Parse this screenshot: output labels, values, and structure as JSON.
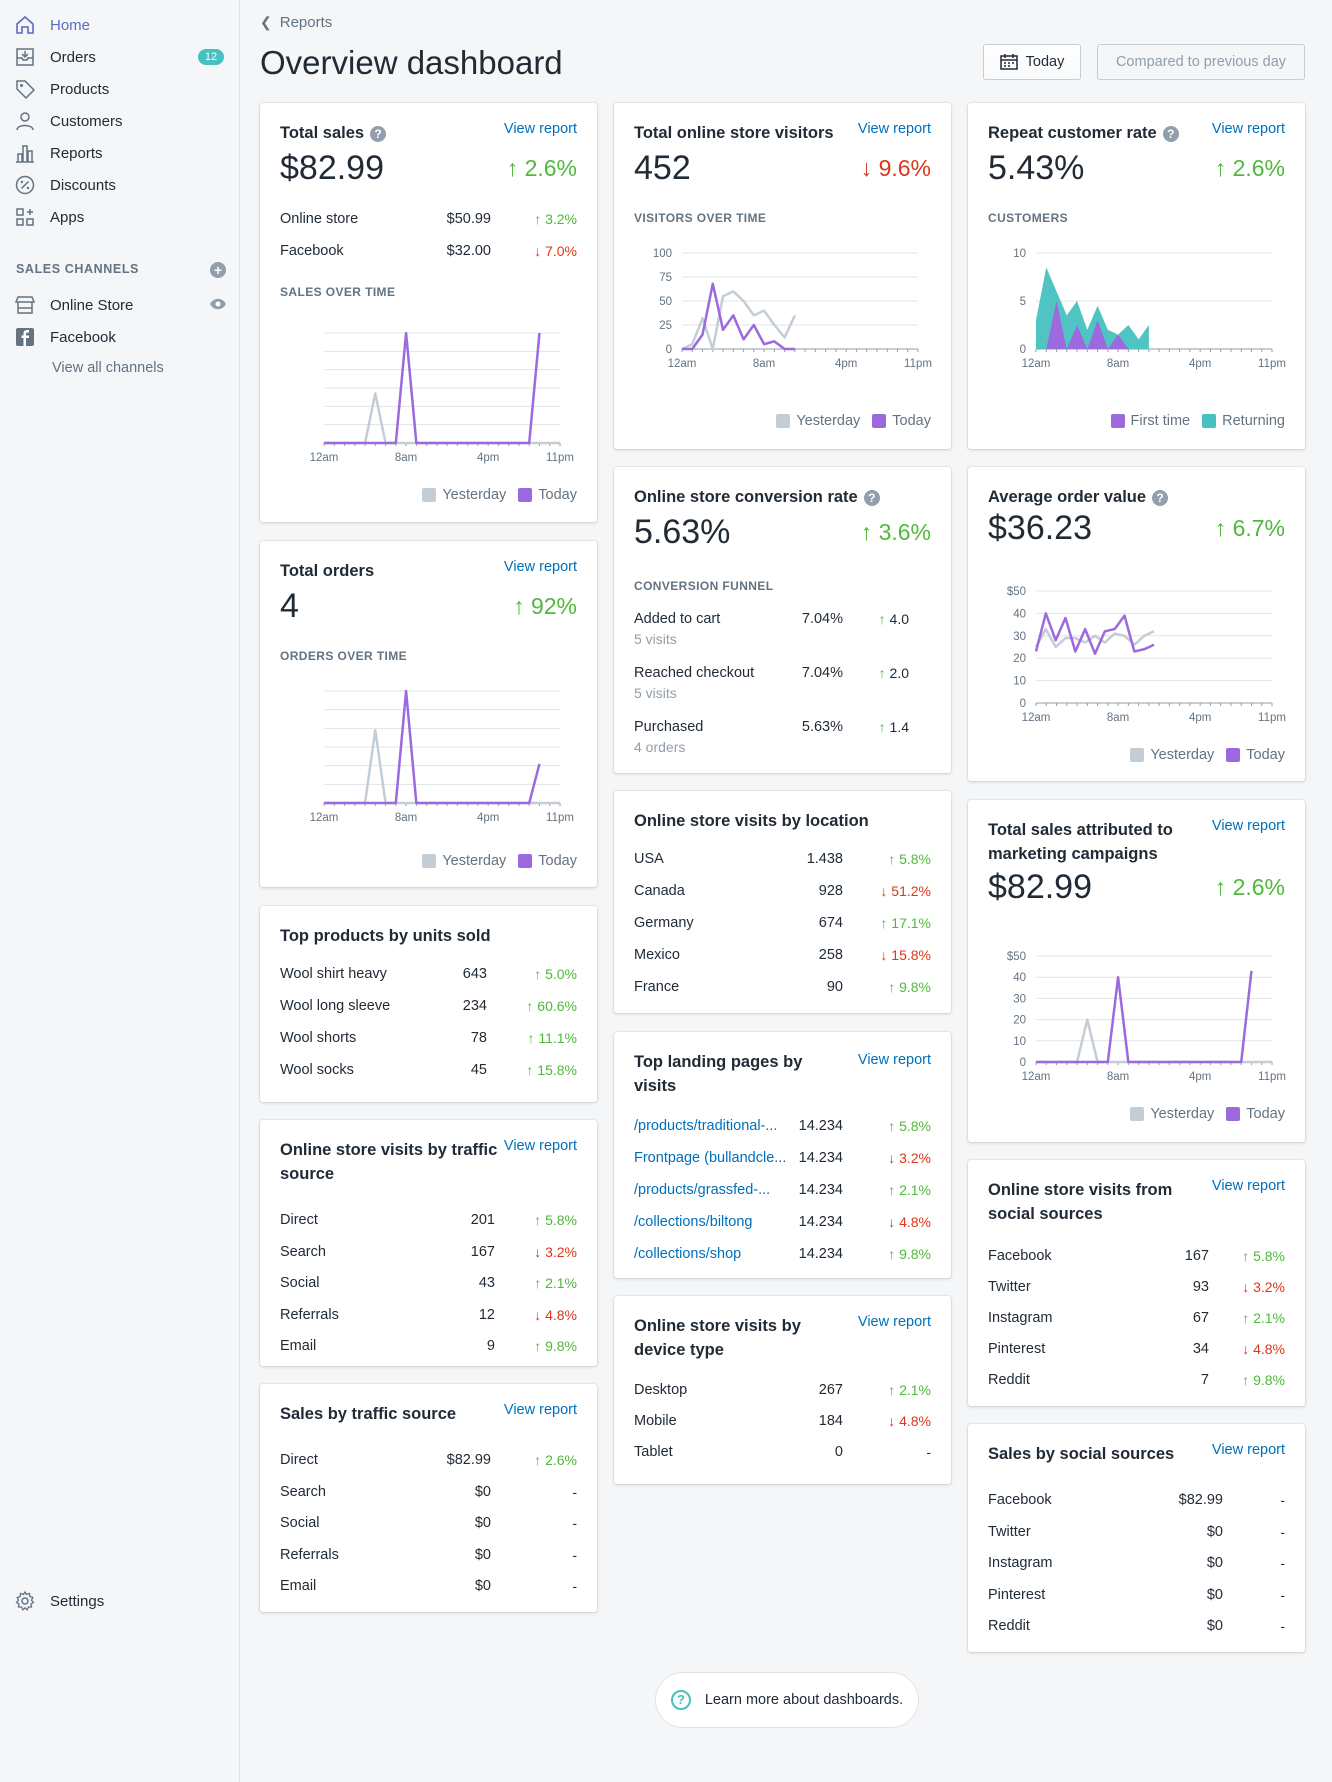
{
  "sidebar": {
    "items": [
      {
        "label": "Home",
        "icon": "home-icon"
      },
      {
        "label": "Orders",
        "icon": "orders-icon",
        "badge": "12"
      },
      {
        "label": "Products",
        "icon": "tag-icon"
      },
      {
        "label": "Customers",
        "icon": "customer-icon"
      },
      {
        "label": "Reports",
        "icon": "reports-icon"
      },
      {
        "label": "Discounts",
        "icon": "discount-icon"
      },
      {
        "label": "Apps",
        "icon": "apps-icon"
      }
    ],
    "channels_heading": "SALES CHANNELS",
    "channels": [
      {
        "label": "Online Store",
        "icon": "store-icon"
      },
      {
        "label": "Facebook",
        "icon": "facebook-icon"
      }
    ],
    "view_all": "View all channels",
    "settings": "Settings"
  },
  "header": {
    "breadcrumb": "Reports",
    "title": "Overview dashboard",
    "date_button": "Today",
    "compare_button": "Compared to previous day"
  },
  "common": {
    "view_report": "View report",
    "yesterday": "Yesterday",
    "today": "Today"
  },
  "total_sales": {
    "title": "Total sales",
    "value": "$82.99",
    "change": "2.6%",
    "rows": [
      {
        "name": "Online store",
        "value": "$50.99",
        "change": "3.2%",
        "dir": "up"
      },
      {
        "name": "Facebook",
        "value": "$32.00",
        "change": "7.0%",
        "dir": "down"
      }
    ],
    "chart_label": "SALES OVER TIME"
  },
  "total_orders": {
    "title": "Total orders",
    "value": "4",
    "change": "92%",
    "chart_label": "ORDERS OVER TIME"
  },
  "top_products": {
    "title": "Top products by units sold",
    "rows": [
      {
        "name": "Wool shirt heavy",
        "value": "643",
        "change": "5.0%",
        "dir": "up"
      },
      {
        "name": "Wool long sleeve",
        "value": "234",
        "change": "60.6%",
        "dir": "up"
      },
      {
        "name": "Wool shorts",
        "value": "78",
        "change": "11.1%",
        "dir": "up"
      },
      {
        "name": "Wool socks",
        "value": "45",
        "change": "15.8%",
        "dir": "up"
      }
    ]
  },
  "traffic_source": {
    "title": "Online store visits by traffic source",
    "rows": [
      {
        "name": "Direct",
        "value": "201",
        "change": "5.8%",
        "dir": "up"
      },
      {
        "name": "Search",
        "value": "167",
        "change": "3.2%",
        "dir": "down"
      },
      {
        "name": "Social",
        "value": "43",
        "change": "2.1%",
        "dir": "up"
      },
      {
        "name": "Referrals",
        "value": "12",
        "change": "4.8%",
        "dir": "down"
      },
      {
        "name": "Email",
        "value": "9",
        "change": "9.8%",
        "dir": "up"
      }
    ]
  },
  "sales_traffic": {
    "title": "Sales by traffic source",
    "rows": [
      {
        "name": "Direct",
        "value": "$82.99",
        "change": "2.6%",
        "dir": "up"
      },
      {
        "name": "Search",
        "value": "$0",
        "change": "-",
        "dir": "none"
      },
      {
        "name": "Social",
        "value": "$0",
        "change": "-",
        "dir": "none"
      },
      {
        "name": "Referrals",
        "value": "$0",
        "change": "-",
        "dir": "none"
      },
      {
        "name": "Email",
        "value": "$0",
        "change": "-",
        "dir": "none"
      }
    ]
  },
  "visitors": {
    "title": "Total online store visitors",
    "value": "452",
    "change": "9.6%",
    "chart_label": "VISITORS OVER TIME"
  },
  "conversion": {
    "title": "Online store conversion rate",
    "value": "5.63%",
    "change": "3.6%",
    "funnel_label": "CONVERSION FUNNEL",
    "rows": [
      {
        "name": "Added to cart",
        "sub": "5 visits",
        "value": "7.04%",
        "change": "4.0"
      },
      {
        "name": "Reached checkout",
        "sub": "5 visits",
        "value": "7.04%",
        "change": "2.0"
      },
      {
        "name": "Purchased",
        "sub": "4 orders",
        "value": "5.63%",
        "change": "1.4"
      }
    ]
  },
  "location": {
    "title": "Online store visits by location",
    "rows": [
      {
        "name": "USA",
        "value": "1.438",
        "change": "5.8%",
        "dir": "up"
      },
      {
        "name": "Canada",
        "value": "928",
        "change": "51.2%",
        "dir": "down"
      },
      {
        "name": "Germany",
        "value": "674",
        "change": "17.1%",
        "dir": "up"
      },
      {
        "name": "Mexico",
        "value": "258",
        "change": "15.8%",
        "dir": "down"
      },
      {
        "name": "France",
        "value": "90",
        "change": "9.8%",
        "dir": "up"
      }
    ]
  },
  "landing": {
    "title": "Top landing pages by visits",
    "rows": [
      {
        "name": "/products/traditional-...",
        "value": "14.234",
        "change": "5.8%",
        "dir": "up"
      },
      {
        "name": "Frontpage (bullandcle...",
        "value": "14.234",
        "change": "3.2%",
        "dir": "down"
      },
      {
        "name": "/products/grassfed-...",
        "value": "14.234",
        "change": "2.1%",
        "dir": "up"
      },
      {
        "name": "/collections/biltong",
        "value": "14.234",
        "change": "4.8%",
        "dir": "down"
      },
      {
        "name": "/collections/shop",
        "value": "14.234",
        "change": "9.8%",
        "dir": "up"
      }
    ]
  },
  "device": {
    "title": "Online store visits by device type",
    "rows": [
      {
        "name": "Desktop",
        "value": "267",
        "change": "2.1%",
        "dir": "up"
      },
      {
        "name": "Mobile",
        "value": "184",
        "change": "4.8%",
        "dir": "down"
      },
      {
        "name": "Tablet",
        "value": "0",
        "change": "-",
        "dir": "none"
      }
    ]
  },
  "repeat": {
    "title": "Repeat customer rate",
    "value": "5.43%",
    "change": "2.6%",
    "chart_label": "CUSTOMERS",
    "legend_first": "First time",
    "legend_returning": "Returning"
  },
  "aov": {
    "title": "Average order value",
    "value": "$36.23",
    "change": "6.7%"
  },
  "marketing": {
    "title": "Total sales attributed to marketing campaigns",
    "value": "$82.99",
    "change": "2.6%"
  },
  "social_visits": {
    "title": "Online store visits from social sources",
    "rows": [
      {
        "name": "Facebook",
        "value": "167",
        "change": "5.8%",
        "dir": "up"
      },
      {
        "name": "Twitter",
        "value": "93",
        "change": "3.2%",
        "dir": "down"
      },
      {
        "name": "Instagram",
        "value": "67",
        "change": "2.1%",
        "dir": "up"
      },
      {
        "name": "Pinterest",
        "value": "34",
        "change": "4.8%",
        "dir": "down"
      },
      {
        "name": "Reddit",
        "value": "7",
        "change": "9.8%",
        "dir": "up"
      }
    ]
  },
  "social_sales": {
    "title": "Sales by social sources",
    "rows": [
      {
        "name": "Facebook",
        "value": "$82.99",
        "change": "-",
        "dir": "none"
      },
      {
        "name": "Twitter",
        "value": "$0",
        "change": "-",
        "dir": "none"
      },
      {
        "name": "Instagram",
        "value": "$0",
        "change": "-",
        "dir": "none"
      },
      {
        "name": "Pinterest",
        "value": "$0",
        "change": "-",
        "dir": "none"
      },
      {
        "name": "Reddit",
        "value": "$0",
        "change": "-",
        "dir": "none"
      }
    ]
  },
  "footer": {
    "learn": "Learn more about dashboards."
  },
  "colors": {
    "today": "#9c6ade",
    "yesterday": "#c4cdd5",
    "returning": "#47c1bf",
    "up": "#50b83c",
    "down": "#de3618",
    "link": "#006fbb"
  },
  "chart_data": [
    {
      "id": "sales",
      "type": "line",
      "x_ticks": [
        "12am",
        "8am",
        "4pm",
        "11pm"
      ],
      "ylim": [
        0,
        100
      ],
      "series": [
        {
          "name": "Yesterday",
          "values": [
            0,
            0,
            0,
            0,
            0,
            45,
            0,
            0,
            0,
            0,
            0,
            0,
            0,
            0,
            0,
            0,
            0,
            0,
            0,
            0,
            0,
            0,
            0,
            0
          ]
        },
        {
          "name": "Today",
          "values": [
            0,
            0,
            0,
            0,
            0,
            0,
            0,
            0,
            100,
            0,
            0,
            0,
            0,
            0,
            0,
            0,
            0,
            0,
            0,
            0,
            0,
            100
          ]
        }
      ]
    },
    {
      "id": "orders",
      "type": "line",
      "x_ticks": [
        "12am",
        "8am",
        "4pm",
        "11pm"
      ],
      "ylim": [
        0,
        100
      ],
      "series": [
        {
          "name": "Yesterday",
          "values": [
            0,
            0,
            0,
            0,
            0,
            65,
            0,
            0,
            0,
            0,
            0,
            0,
            0,
            0,
            0,
            0,
            0,
            0,
            0,
            0,
            0,
            0,
            0,
            0
          ]
        },
        {
          "name": "Today",
          "values": [
            0,
            0,
            0,
            0,
            0,
            0,
            0,
            0,
            100,
            0,
            0,
            0,
            0,
            0,
            0,
            0,
            0,
            0,
            0,
            0,
            0,
            35
          ]
        }
      ]
    },
    {
      "id": "visitors",
      "type": "line",
      "x_ticks": [
        "12am",
        "8am",
        "4pm",
        "11pm"
      ],
      "y_ticks": [
        "100",
        "75",
        "50",
        "25",
        "0"
      ],
      "ylim": [
        0,
        100
      ],
      "series": [
        {
          "name": "Yesterday",
          "values": [
            0,
            5,
            32,
            0,
            55,
            60,
            50,
            35,
            40,
            25,
            12,
            35
          ]
        },
        {
          "name": "Today",
          "values": [
            0,
            0,
            15,
            68,
            20,
            35,
            10,
            25,
            5,
            8,
            0,
            0
          ]
        }
      ]
    },
    {
      "id": "customers",
      "type": "area",
      "x_ticks": [
        "12am",
        "8am",
        "4pm",
        "11pm"
      ],
      "y_ticks": [
        "10",
        "5",
        "0"
      ],
      "ylim": [
        0,
        10
      ],
      "series": [
        {
          "name": "Returning",
          "values": [
            3,
            8.5,
            6,
            3.5,
            5,
            2,
            4.5,
            2,
            1.5,
            2.5,
            1,
            2.5
          ]
        },
        {
          "name": "First time",
          "values": [
            0,
            0,
            5,
            0,
            2.5,
            0,
            3,
            0,
            1.5,
            0,
            0,
            0
          ]
        }
      ]
    },
    {
      "id": "aov",
      "type": "line",
      "x_ticks": [
        "12am",
        "8am",
        "4pm",
        "11pm"
      ],
      "y_ticks": [
        "$50",
        "40",
        "30",
        "20",
        "10",
        "0"
      ],
      "ylim": [
        0,
        50
      ],
      "series": [
        {
          "name": "Yesterday",
          "values": [
            25,
            33,
            25,
            29,
            29,
            27,
            30,
            27,
            31,
            30,
            26,
            30,
            32
          ]
        },
        {
          "name": "Today",
          "values": [
            23,
            40,
            28,
            38,
            23,
            33,
            22,
            32,
            33,
            39,
            23,
            24,
            26
          ]
        }
      ]
    },
    {
      "id": "marketing",
      "type": "line",
      "x_ticks": [
        "12am",
        "8am",
        "4pm",
        "11pm"
      ],
      "y_ticks": [
        "$50",
        "40",
        "30",
        "20",
        "10",
        "0"
      ],
      "ylim": [
        0,
        50
      ],
      "series": [
        {
          "name": "Yesterday",
          "values": [
            0,
            0,
            0,
            0,
            0,
            20,
            0,
            0,
            0,
            0,
            0,
            0,
            0,
            0,
            0,
            0,
            0,
            0,
            0,
            0,
            0,
            0,
            0,
            0
          ]
        },
        {
          "name": "Today",
          "values": [
            0,
            0,
            0,
            0,
            0,
            0,
            0,
            0,
            40,
            0,
            0,
            0,
            0,
            0,
            0,
            0,
            0,
            0,
            0,
            0,
            0,
            43
          ]
        }
      ]
    }
  ]
}
